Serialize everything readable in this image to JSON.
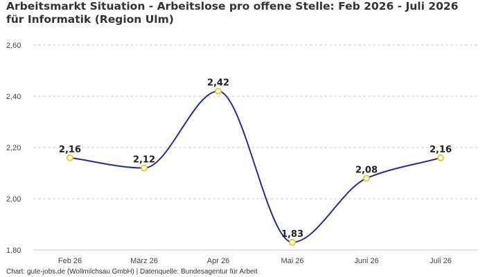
{
  "chart_data": {
    "type": "line",
    "title": "Arbeitsmarkt Situation - Arbeitslose pro offene Stelle: Feb 2026 - Juli 2026 für Informatik (Region Ulm)",
    "xlabel": "",
    "ylabel": "",
    "categories": [
      "Feb 26",
      "März 26",
      "Apr 26",
      "Mai 26",
      "Juni 26",
      "Juli 26"
    ],
    "series": [
      {
        "values": [
          2.16,
          2.12,
          2.42,
          1.83,
          2.08,
          2.16
        ]
      }
    ],
    "data_labels": [
      "2,16",
      "2,12",
      "2,42",
      "1,83",
      "2,08",
      "2,16"
    ],
    "yticks": [
      1.8,
      2.0,
      2.2,
      2.4,
      2.6
    ],
    "ytick_labels": [
      "1,80",
      "2,00",
      "2,20",
      "2,40",
      "2,60"
    ],
    "ylim": [
      1.8,
      2.6
    ],
    "grid": true,
    "legend": "none",
    "colors": {
      "line": "#1f2f8f",
      "marker_stroke": "#f0c419",
      "marker_fill": "#ffffff",
      "grid": "#cccccc"
    }
  },
  "footer": "Chart: gute-jobs.de (Wollmilchsau GmbH) | Datenquelle: Bundesagentur für Arbeit"
}
